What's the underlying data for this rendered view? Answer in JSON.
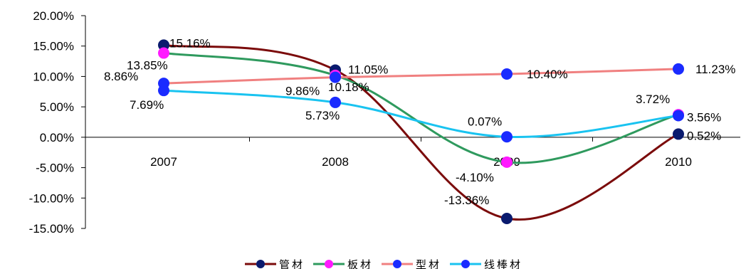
{
  "chart_data": {
    "type": "line",
    "categories": [
      "2007",
      "2008",
      "2009",
      "2010"
    ],
    "ylim": [
      -0.15,
      0.2
    ],
    "yticks": [
      "20.00%",
      "15.00%",
      "10.00%",
      "5.00%",
      "0.00%",
      "-5.00%",
      "-10.00%",
      "-15.00%"
    ],
    "ytick_values": [
      0.2,
      0.15,
      0.1,
      0.05,
      0.0,
      -0.05,
      -0.1,
      -0.15
    ],
    "legend_position": "bottom",
    "series": [
      {
        "name": "管材",
        "line_color": "#7b0b0b",
        "marker_color": "#0a1a6e",
        "values": [
          0.1516,
          0.1105,
          -0.1336,
          0.0052
        ],
        "labels": [
          "15.16%",
          "11.05%",
          "-13.36%",
          "0.52%"
        ]
      },
      {
        "name": "板材",
        "line_color": "#2f9a5e",
        "marker_color": "#ff1aff",
        "values": [
          0.1385,
          0.1018,
          -0.041,
          0.0372
        ],
        "labels": [
          "13.85%",
          "10.18%",
          "-4.10%",
          "3.72%"
        ]
      },
      {
        "name": "型材",
        "line_color": "#f08080",
        "marker_color": "#1a2bff",
        "values": [
          0.0886,
          0.0986,
          0.104,
          0.1123
        ],
        "labels": [
          "8.86%",
          "9.86%",
          "10.40%",
          "11.23%"
        ]
      },
      {
        "name": "线棒材",
        "line_color": "#19c3f0",
        "marker_color": "#1a2bff",
        "values": [
          0.0769,
          0.0573,
          0.0007,
          0.0356
        ],
        "labels": [
          "7.69%",
          "5.73%",
          "0.07%",
          "3.56%"
        ]
      }
    ]
  }
}
